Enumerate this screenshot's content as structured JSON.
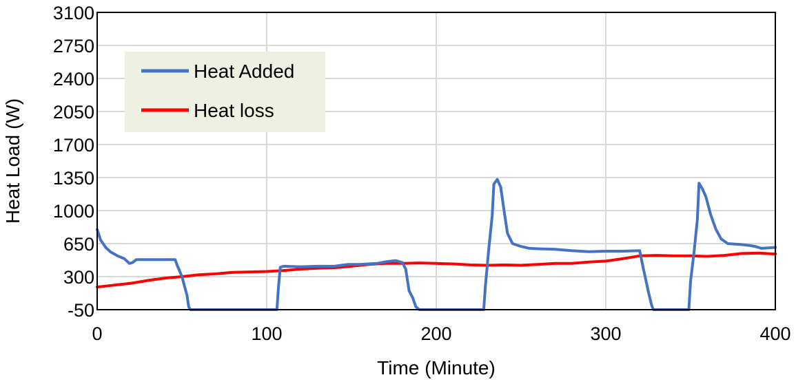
{
  "chart_data": {
    "type": "line",
    "title": "",
    "xlabel": "Time (Minute)",
    "ylabel": "Heat Load (W)",
    "xlim": [
      0,
      400
    ],
    "ylim": [
      -50,
      3100
    ],
    "x_ticks": [
      0,
      100,
      200,
      300,
      400
    ],
    "y_ticks": [
      -50,
      300,
      650,
      1000,
      1350,
      1700,
      2050,
      2400,
      2750,
      3100
    ],
    "grid": true,
    "legend_position": "top-left",
    "legend_background": "#eef0e2",
    "series": [
      {
        "name": "Heat Added",
        "color": "#4472c4",
        "points": [
          [
            0,
            800
          ],
          [
            2,
            690
          ],
          [
            5,
            610
          ],
          [
            8,
            560
          ],
          [
            12,
            520
          ],
          [
            16,
            490
          ],
          [
            19,
            440
          ],
          [
            21,
            450
          ],
          [
            23,
            480
          ],
          [
            30,
            480
          ],
          [
            40,
            480
          ],
          [
            46,
            480
          ],
          [
            47,
            430
          ],
          [
            50,
            300
          ],
          [
            53,
            100
          ],
          [
            54,
            -20
          ],
          [
            55,
            -50
          ],
          [
            80,
            -50
          ],
          [
            106,
            -50
          ],
          [
            107,
            200
          ],
          [
            108,
            400
          ],
          [
            110,
            410
          ],
          [
            120,
            405
          ],
          [
            130,
            410
          ],
          [
            140,
            410
          ],
          [
            144,
            420
          ],
          [
            148,
            430
          ],
          [
            155,
            430
          ],
          [
            165,
            440
          ],
          [
            171,
            460
          ],
          [
            176,
            470
          ],
          [
            180,
            450
          ],
          [
            182,
            380
          ],
          [
            184,
            150
          ],
          [
            186,
            80
          ],
          [
            188,
            -20
          ],
          [
            190,
            -50
          ],
          [
            210,
            -50
          ],
          [
            228,
            -50
          ],
          [
            229,
            200
          ],
          [
            231,
            600
          ],
          [
            233,
            950
          ],
          [
            234,
            1280
          ],
          [
            236,
            1330
          ],
          [
            238,
            1250
          ],
          [
            240,
            1000
          ],
          [
            242,
            760
          ],
          [
            245,
            650
          ],
          [
            250,
            620
          ],
          [
            255,
            600
          ],
          [
            260,
            595
          ],
          [
            270,
            590
          ],
          [
            280,
            575
          ],
          [
            290,
            565
          ],
          [
            300,
            570
          ],
          [
            310,
            570
          ],
          [
            320,
            575
          ],
          [
            322,
            400
          ],
          [
            325,
            150
          ],
          [
            327,
            0
          ],
          [
            328,
            -50
          ],
          [
            340,
            -50
          ],
          [
            349,
            -50
          ],
          [
            350,
            250
          ],
          [
            352,
            550
          ],
          [
            354,
            900
          ],
          [
            355,
            1290
          ],
          [
            357,
            1230
          ],
          [
            359,
            1150
          ],
          [
            362,
            950
          ],
          [
            365,
            800
          ],
          [
            368,
            700
          ],
          [
            372,
            650
          ],
          [
            380,
            640
          ],
          [
            385,
            630
          ],
          [
            388,
            620
          ],
          [
            392,
            600
          ],
          [
            400,
            610
          ]
        ]
      },
      {
        "name": "Heat loss",
        "color": "#ff0000",
        "points": [
          [
            0,
            190
          ],
          [
            10,
            210
          ],
          [
            20,
            230
          ],
          [
            30,
            260
          ],
          [
            40,
            285
          ],
          [
            50,
            300
          ],
          [
            60,
            320
          ],
          [
            70,
            330
          ],
          [
            80,
            345
          ],
          [
            90,
            350
          ],
          [
            100,
            355
          ],
          [
            110,
            365
          ],
          [
            120,
            380
          ],
          [
            130,
            390
          ],
          [
            140,
            395
          ],
          [
            150,
            410
          ],
          [
            160,
            430
          ],
          [
            170,
            440
          ],
          [
            180,
            440
          ],
          [
            190,
            445
          ],
          [
            200,
            440
          ],
          [
            210,
            435
          ],
          [
            220,
            425
          ],
          [
            230,
            420
          ],
          [
            240,
            425
          ],
          [
            250,
            420
          ],
          [
            260,
            430
          ],
          [
            270,
            440
          ],
          [
            280,
            440
          ],
          [
            290,
            455
          ],
          [
            300,
            465
          ],
          [
            310,
            490
          ],
          [
            320,
            520
          ],
          [
            330,
            525
          ],
          [
            340,
            520
          ],
          [
            350,
            520
          ],
          [
            360,
            515
          ],
          [
            370,
            525
          ],
          [
            380,
            545
          ],
          [
            390,
            550
          ],
          [
            400,
            540
          ]
        ]
      }
    ]
  }
}
